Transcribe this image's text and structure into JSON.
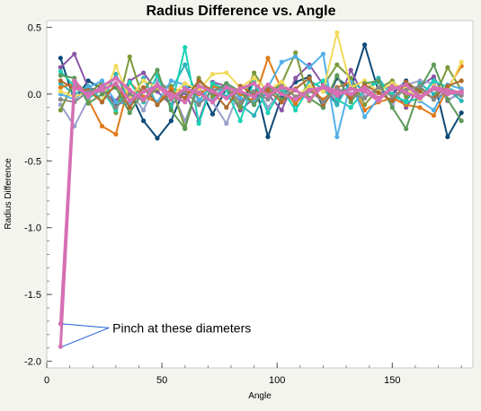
{
  "chart_data": {
    "type": "line",
    "title": "Radius Difference vs. Angle",
    "xlabel": "Angle",
    "ylabel": "Radius Difference",
    "xlim": [
      0,
      185
    ],
    "ylim": [
      -2.05,
      0.55
    ],
    "xticks": [
      0,
      50,
      100,
      150
    ],
    "yticks": [
      0.5,
      0.0,
      -0.5,
      -1.0,
      -1.5,
      -2.0
    ],
    "xtick_labels": [
      "0",
      "50",
      "100",
      "150"
    ],
    "ytick_labels": [
      "0.5",
      "0.0",
      "-0.5",
      "-1.0",
      "-1.5",
      "-2.0"
    ],
    "grid": false,
    "annotation": {
      "text": "Pinch at these diameters",
      "targets": [
        [
          6,
          -1.72
        ],
        [
          6,
          -1.89
        ]
      ],
      "anchor": [
        27,
        -1.75
      ]
    },
    "x": [
      6,
      12,
      18,
      24,
      30,
      36,
      42,
      48,
      54,
      60,
      66,
      72,
      78,
      84,
      90,
      96,
      102,
      108,
      114,
      120,
      126,
      132,
      138,
      144,
      150,
      156,
      162,
      168,
      174,
      180
    ],
    "series": [
      {
        "color": "#d66fb4",
        "width": 3,
        "values": [
          -1.72,
          0.1,
          -0.02,
          0.06,
          0.12,
          0.03,
          -0.04,
          0.07,
          0.0,
          -0.06,
          0.06,
          0.02,
          -0.03,
          0.04,
          0.08,
          -0.01,
          0.05,
          0.03,
          -0.04,
          0.06,
          0.02,
          0.0,
          0.05,
          -0.03,
          0.04,
          0.07,
          -0.02,
          0.05,
          0.03,
          0.01
        ]
      },
      {
        "color": "#d66fb4",
        "width": 3,
        "values": [
          -1.89,
          0.05,
          0.0,
          0.03,
          0.08,
          -0.05,
          0.02,
          0.06,
          -0.03,
          0.04,
          0.01,
          -0.06,
          0.05,
          0.02,
          -0.02,
          0.07,
          0.0,
          -0.04,
          0.03,
          0.05,
          -0.01,
          0.04,
          0.02,
          -0.05,
          0.06,
          0.01,
          -0.03,
          0.04,
          0.0,
          0.02
        ]
      },
      {
        "color": "#0d4a78",
        "width": 2,
        "values": [
          0.27,
          -0.05,
          0.1,
          0.04,
          -0.08,
          0.02,
          -0.2,
          -0.33,
          -0.2,
          0.05,
          0.06,
          -0.15,
          0.04,
          -0.1,
          0.11,
          -0.32,
          -0.02,
          0.09,
          0.13,
          -0.1,
          0.12,
          0.04,
          0.37,
          0.02,
          0.0,
          0.1,
          -0.05,
          0.11,
          -0.32,
          -0.14
        ]
      },
      {
        "color": "#8a57a8",
        "width": 2,
        "values": [
          0.2,
          0.3,
          0.05,
          0.02,
          -0.05,
          0.1,
          0.16,
          0.02,
          -0.08,
          0.01,
          -0.2,
          0.09,
          0.06,
          -0.12,
          -0.03,
          0.0,
          -0.12,
          0.12,
          0.22,
          0.07,
          -0.07,
          0.18,
          -0.03,
          0.05,
          0.05,
          -0.1,
          0.06,
          0.13,
          -0.05,
          0.02
        ]
      },
      {
        "color": "#9aa0cc",
        "width": 2,
        "values": [
          -0.08,
          -0.24,
          -0.04,
          0.06,
          -0.1,
          0.02,
          -0.12,
          0.1,
          0.03,
          -0.2,
          0.05,
          -0.06,
          -0.22,
          0.04,
          0.08,
          -0.1,
          0.03,
          -0.05,
          0.02,
          0.06,
          0.0,
          0.05,
          -0.02,
          0.04,
          -0.08,
          0.07,
          0.1,
          0.08,
          -0.04,
          0.0
        ]
      },
      {
        "color": "#2db3b8",
        "width": 2,
        "values": [
          0.08,
          0.0,
          0.06,
          -0.05,
          0.15,
          -0.06,
          0.12,
          -0.08,
          0.03,
          0.22,
          -0.05,
          0.07,
          -0.02,
          -0.08,
          -0.16,
          0.04,
          0.05,
          -0.08,
          0.1,
          0.04,
          -0.08,
          0.1,
          0.02,
          0.12,
          -0.02,
          -0.05,
          0.08,
          0.0,
          0.04,
          -0.05
        ]
      },
      {
        "color": "#7a9a3a",
        "width": 2,
        "values": [
          -0.12,
          0.1,
          0.0,
          0.09,
          -0.14,
          0.28,
          -0.05,
          0.04,
          0.06,
          -0.25,
          0.12,
          -0.02,
          0.05,
          -0.1,
          0.16,
          0.0,
          0.08,
          0.31,
          -0.05,
          0.06,
          0.22,
          0.12,
          -0.08,
          0.04,
          0.1,
          -0.02,
          0.05,
          -0.04,
          0.2,
          0.03
        ]
      },
      {
        "color": "#e07a1a",
        "width": 2,
        "values": [
          0.05,
          0.08,
          -0.04,
          -0.24,
          -0.3,
          0.09,
          -0.02,
          -0.06,
          0.04,
          0.02,
          0.0,
          0.06,
          0.03,
          0.0,
          -0.05,
          0.27,
          0.03,
          -0.07,
          0.04,
          -0.04,
          0.05,
          0.09,
          -0.12,
          -0.06,
          -0.03,
          -0.08,
          -0.1,
          -0.16,
          0.04,
          0.21
        ]
      },
      {
        "color": "#1bd1b4",
        "width": 2,
        "values": [
          0.17,
          0.06,
          -0.03,
          0.03,
          -0.12,
          0.09,
          -0.06,
          0.14,
          -0.1,
          0.35,
          -0.22,
          0.08,
          0.03,
          -0.2,
          0.1,
          -0.14,
          0.04,
          -0.12,
          0.05,
          0.1,
          -0.04,
          -0.1,
          0.03,
          0.09,
          0.0,
          -0.06,
          -0.03,
          0.1,
          0.05,
          0.0
        ]
      },
      {
        "color": "#52b0e8",
        "width": 2,
        "values": [
          0.0,
          -0.04,
          0.05,
          0.1,
          -0.06,
          -0.08,
          0.04,
          -0.06,
          0.1,
          0.07,
          -0.04,
          -0.05,
          0.08,
          -0.03,
          -0.06,
          0.05,
          0.24,
          0.28,
          0.2,
          0.3,
          -0.32,
          0.09,
          -0.17,
          -0.03,
          0.04,
          0.08,
          -0.05,
          -0.12,
          0.07,
          0.04
        ]
      },
      {
        "color": "#f2da5a",
        "width": 2,
        "values": [
          0.02,
          -0.02,
          0.02,
          -0.05,
          0.21,
          -0.03,
          0.1,
          0.05,
          -0.02,
          0.08,
          0.03,
          0.15,
          0.16,
          0.05,
          0.12,
          0.03,
          0.09,
          -0.02,
          0.06,
          0.02,
          0.46,
          0.05,
          0.1,
          0.02,
          0.08,
          0.04,
          -0.04,
          0.06,
          0.02,
          0.24
        ]
      },
      {
        "color": "#5c9a5a",
        "width": 2,
        "values": [
          0.14,
          0.12,
          -0.07,
          0.0,
          0.05,
          -0.14,
          0.02,
          0.18,
          -0.12,
          -0.26,
          0.1,
          0.01,
          0.08,
          0.02,
          -0.08,
          0.06,
          -0.04,
          0.03,
          -0.03,
          -0.1,
          0.14,
          -0.06,
          0.08,
          0.1,
          -0.1,
          -0.26,
          0.04,
          0.22,
          -0.04,
          -0.2
        ]
      },
      {
        "color": "#b06a2a",
        "width": 2,
        "values": [
          0.1,
          0.04,
          0.03,
          -0.06,
          0.08,
          -0.1,
          0.05,
          -0.08,
          0.02,
          -0.03,
          0.1,
          0.02,
          -0.1,
          0.06,
          0.0,
          0.03,
          -0.06,
          0.04,
          0.12,
          -0.08,
          0.05,
          -0.03,
          0.07,
          0.01,
          -0.05,
          0.09,
          0.02,
          -0.03,
          0.06,
          0.1
        ]
      },
      {
        "color": "#888888",
        "width": 2,
        "values": [
          -0.04,
          -0.06,
          0.02,
          0.04,
          -0.1,
          0.0,
          -0.05,
          0.06,
          -0.04,
          0.02,
          -0.08,
          0.03,
          0.05,
          -0.06,
          0.02,
          -0.04,
          0.06,
          -0.02,
          0.03,
          -0.06,
          0.04,
          0.0,
          -0.03,
          0.05,
          -0.02,
          0.03,
          0.06,
          -0.04,
          0.02,
          -0.01
        ]
      }
    ]
  }
}
